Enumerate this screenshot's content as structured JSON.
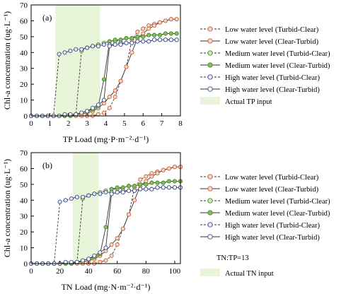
{
  "figure": {
    "legend_labels": [
      "Low water level (Turbid-Clear)",
      "Low water level (Clear-Turbid)",
      "Medium water level (Turbid-Clear)",
      "Medium water level (Clear-Turbid)",
      "High water level (Turbid-Clear)",
      "High water level (Clear-Turbid)"
    ],
    "colors": {
      "low": "#c8603c",
      "low_fill": "#f7d8c6",
      "medium": "#4f8a2a",
      "medium_fill_tc": "#cfe6bd",
      "medium_fill_ct": "#7fc25a",
      "high": "#3a4a8c",
      "high_fill_tc": "#e7eaf4",
      "high_fill_ct": "#ffffff",
      "band": "#e8f5d8"
    }
  },
  "chart_data": [
    {
      "type": "line",
      "panel_label": "(a)",
      "xlabel": "TP Load (mg·P·m⁻²·d⁻¹)",
      "ylabel": "Chl-a concentration (ug·L⁻¹)",
      "xlim": [
        0,
        8
      ],
      "ylim": [
        0,
        70
      ],
      "xticks": [
        0,
        1,
        2,
        3,
        4,
        5,
        6,
        7,
        8
      ],
      "yticks": [
        0,
        10,
        20,
        30,
        40,
        50,
        60,
        70
      ],
      "grid": false,
      "legend_position": "right",
      "band": {
        "x": [
          1.3,
          3.7
        ],
        "label": "Actual TP input"
      },
      "series": [
        {
          "name": "Low water level (Turbid-Clear)",
          "style": "dashed",
          "group": "low",
          "fill": "low_fill",
          "x": [
            0,
            0.3,
            0.6,
            0.9,
            1.2,
            1.5,
            1.8,
            2.1,
            2.4,
            2.7,
            3.0,
            3.3,
            3.6,
            3.9,
            4.2,
            4.5,
            4.8,
            5.1,
            5.4,
            5.7,
            6.0,
            6.3,
            6.6,
            6.9,
            7.2,
            7.5,
            7.8
          ],
          "y": [
            0,
            0,
            0,
            0,
            0,
            0,
            0,
            0,
            0,
            0,
            0,
            0,
            1,
            2,
            5,
            12,
            22,
            31,
            48,
            53,
            55,
            57,
            58,
            59,
            60,
            61,
            61
          ]
        },
        {
          "name": "Low water level (Clear-Turbid)",
          "style": "solid",
          "group": "low",
          "fill": "low_fill",
          "x": [
            0,
            0.3,
            0.6,
            0.9,
            1.2,
            1.5,
            1.8,
            2.1,
            2.4,
            2.7,
            3.0,
            3.3,
            3.6,
            3.9,
            4.2,
            4.5,
            4.8,
            5.1,
            5.4,
            5.7,
            6.0,
            6.3,
            6.6,
            6.9,
            7.2,
            7.5,
            7.8
          ],
          "y": [
            0,
            0,
            0,
            0,
            0,
            0,
            0,
            0,
            1,
            1,
            2,
            3,
            5,
            8,
            12,
            16,
            22,
            31,
            40,
            49,
            52,
            55,
            57,
            59,
            60,
            61,
            61
          ]
        },
        {
          "name": "Medium water level (Turbid-Clear)",
          "style": "dashed",
          "group": "medium",
          "fill": "medium_fill_tc",
          "x": [
            0,
            0.3,
            0.6,
            0.9,
            1.2,
            1.5,
            1.8,
            2.1,
            2.4,
            2.7,
            3.0,
            3.3,
            3.6,
            3.9,
            4.2,
            4.5,
            4.8,
            5.1,
            5.4,
            5.7,
            6.0,
            6.3,
            6.6,
            6.9,
            7.2,
            7.5,
            7.8
          ],
          "y": [
            0,
            0,
            0,
            0,
            0,
            0,
            0,
            0,
            1,
            41,
            43,
            44,
            45,
            46,
            47,
            47,
            48,
            49,
            49,
            50,
            50,
            51,
            51,
            51,
            52,
            52,
            52
          ]
        },
        {
          "name": "Medium water level (Clear-Turbid)",
          "style": "solid",
          "group": "medium",
          "fill": "medium_fill_ct",
          "x": [
            0,
            0.3,
            0.6,
            0.9,
            1.2,
            1.5,
            1.8,
            2.1,
            2.4,
            2.7,
            3.0,
            3.3,
            3.6,
            3.9,
            4.2,
            4.5,
            4.8,
            5.1,
            5.4,
            5.7,
            6.0,
            6.3,
            6.6,
            6.9,
            7.2,
            7.5,
            7.8
          ],
          "y": [
            0,
            0,
            0,
            0,
            0,
            0,
            0,
            0,
            1,
            2,
            3,
            4,
            6,
            23,
            47,
            48,
            48,
            49,
            49,
            50,
            50,
            51,
            51,
            51,
            52,
            52,
            52
          ]
        },
        {
          "name": "High water level (Turbid-Clear)",
          "style": "dashed",
          "group": "high",
          "fill": "high_fill_tc",
          "x": [
            0,
            0.3,
            0.6,
            0.9,
            1.2,
            1.5,
            1.8,
            2.1,
            2.4,
            2.7,
            3.0,
            3.3,
            3.6,
            3.9,
            4.2,
            4.5,
            4.8,
            5.1,
            5.4,
            5.7,
            6.0,
            6.3,
            6.6,
            6.9,
            7.2,
            7.5,
            7.8
          ],
          "y": [
            0,
            0,
            0,
            0,
            0,
            39,
            40,
            41,
            42,
            42,
            43,
            44,
            44,
            45,
            45,
            45,
            46,
            46,
            46,
            47,
            47,
            47,
            48,
            48,
            48,
            48,
            48
          ]
        },
        {
          "name": "High water level (Clear-Turbid)",
          "style": "solid",
          "group": "high",
          "fill": "high_fill_ct",
          "x": [
            0,
            0.3,
            0.6,
            0.9,
            1.2,
            1.5,
            1.8,
            2.1,
            2.4,
            2.7,
            3.0,
            3.3,
            3.6,
            3.9,
            4.2,
            4.5,
            4.8,
            5.1,
            5.4,
            5.7,
            6.0,
            6.3,
            6.6,
            6.9,
            7.2,
            7.5,
            7.8
          ],
          "y": [
            0,
            0,
            0,
            0,
            0,
            0,
            1,
            1,
            1,
            2,
            3,
            5,
            7,
            10,
            44,
            45,
            45,
            46,
            46,
            47,
            47,
            47,
            48,
            48,
            48,
            48,
            48
          ]
        }
      ]
    },
    {
      "type": "line",
      "panel_label": "(b)",
      "xlabel": "TN Load (mg·N·m⁻²·d⁻¹)",
      "ylabel": "Chl-a concentration (ug·L⁻¹)",
      "xlim": [
        0,
        104
      ],
      "ylim": [
        0,
        70
      ],
      "xticks": [
        0,
        20,
        40,
        60,
        80,
        100
      ],
      "yticks": [
        0,
        10,
        20,
        30,
        40,
        50,
        60,
        70
      ],
      "grid": false,
      "legend_position": "right",
      "annotation": "TN:TP=13",
      "band": {
        "x": [
          29,
          47
        ],
        "label": "Actual TN input"
      },
      "series": [
        {
          "name": "Low water level (Turbid-Clear)",
          "style": "dashed",
          "group": "low",
          "fill": "low_fill",
          "x": [
            0,
            4,
            8,
            12,
            16,
            20,
            24,
            28,
            32,
            36,
            40,
            44,
            48,
            52,
            56,
            60,
            64,
            68,
            72,
            76,
            80,
            84,
            88,
            92,
            96,
            100,
            104
          ],
          "y": [
            0,
            0,
            0,
            0,
            0,
            0,
            0,
            0,
            0,
            0,
            0,
            0,
            1,
            2,
            5,
            12,
            22,
            31,
            48,
            53,
            55,
            57,
            58,
            59,
            60,
            61,
            61
          ]
        },
        {
          "name": "Low water level (Clear-Turbid)",
          "style": "solid",
          "group": "low",
          "fill": "low_fill",
          "x": [
            0,
            4,
            8,
            12,
            16,
            20,
            24,
            28,
            32,
            36,
            40,
            44,
            48,
            52,
            56,
            60,
            64,
            68,
            72,
            76,
            80,
            84,
            88,
            92,
            96,
            100,
            104
          ],
          "y": [
            0,
            0,
            0,
            0,
            0,
            0,
            0,
            0,
            1,
            1,
            2,
            3,
            5,
            8,
            12,
            16,
            22,
            31,
            40,
            49,
            52,
            55,
            57,
            59,
            60,
            61,
            61
          ]
        },
        {
          "name": "Medium water level (Turbid-Clear)",
          "style": "dashed",
          "group": "medium",
          "fill": "medium_fill_tc",
          "x": [
            0,
            4,
            8,
            12,
            16,
            20,
            24,
            28,
            32,
            36,
            40,
            44,
            48,
            52,
            56,
            60,
            64,
            68,
            72,
            76,
            80,
            84,
            88,
            92,
            96,
            100,
            104
          ],
          "y": [
            0,
            0,
            0,
            0,
            0,
            0,
            0,
            0,
            1,
            41,
            43,
            44,
            45,
            46,
            47,
            47,
            48,
            49,
            49,
            50,
            50,
            51,
            51,
            51,
            52,
            52,
            52
          ]
        },
        {
          "name": "Medium water level (Clear-Turbid)",
          "style": "solid",
          "group": "medium",
          "fill": "medium_fill_ct",
          "x": [
            0,
            4,
            8,
            12,
            16,
            20,
            24,
            28,
            32,
            36,
            40,
            44,
            48,
            52,
            56,
            60,
            64,
            68,
            72,
            76,
            80,
            84,
            88,
            92,
            96,
            100,
            104
          ],
          "y": [
            0,
            0,
            0,
            0,
            0,
            0,
            0,
            0,
            1,
            2,
            3,
            4,
            6,
            23,
            47,
            48,
            48,
            49,
            49,
            50,
            50,
            51,
            51,
            51,
            52,
            52,
            52
          ]
        },
        {
          "name": "High water level (Turbid-Clear)",
          "style": "dashed",
          "group": "high",
          "fill": "high_fill_tc",
          "x": [
            0,
            4,
            8,
            12,
            16,
            20,
            24,
            28,
            32,
            36,
            40,
            44,
            48,
            52,
            56,
            60,
            64,
            68,
            72,
            76,
            80,
            84,
            88,
            92,
            96,
            100,
            104
          ],
          "y": [
            0,
            0,
            0,
            0,
            0,
            39,
            40,
            41,
            42,
            42,
            43,
            44,
            44,
            45,
            45,
            45,
            46,
            46,
            46,
            47,
            47,
            47,
            48,
            48,
            48,
            48,
            48
          ]
        },
        {
          "name": "High water level (Clear-Turbid)",
          "style": "solid",
          "group": "high",
          "fill": "high_fill_ct",
          "x": [
            0,
            4,
            8,
            12,
            16,
            20,
            24,
            28,
            32,
            36,
            40,
            44,
            48,
            52,
            56,
            60,
            64,
            68,
            72,
            76,
            80,
            84,
            88,
            92,
            96,
            100,
            104
          ],
          "y": [
            0,
            0,
            0,
            0,
            0,
            0,
            1,
            1,
            1,
            2,
            3,
            5,
            7,
            10,
            44,
            45,
            45,
            46,
            46,
            47,
            47,
            47,
            48,
            48,
            48,
            48,
            48
          ]
        }
      ]
    }
  ]
}
